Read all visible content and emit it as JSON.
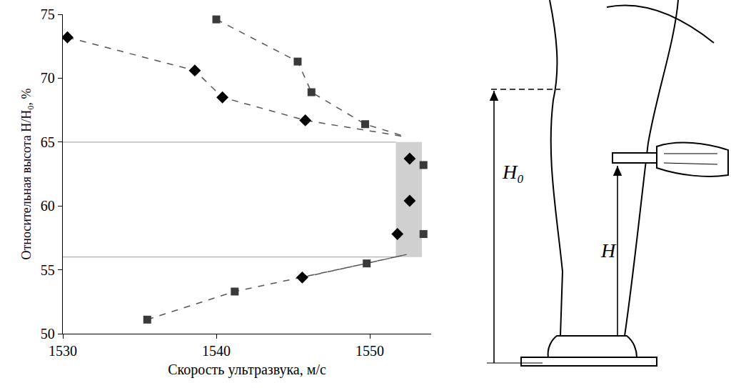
{
  "chart_data": {
    "type": "scatter",
    "xlabel": "Скорость ультразвука, м/с",
    "ylabel": "Относительная высота H/H₀, %",
    "xlim": [
      1530,
      1554
    ],
    "xticks": [
      1530,
      1540,
      1550
    ],
    "ylim": [
      50,
      75
    ],
    "yticks": [
      50,
      55,
      60,
      65,
      70,
      75
    ],
    "grid": false,
    "hlines": [
      65,
      56
    ],
    "band": {
      "x": [
        1551.7,
        1553.4
      ],
      "y": [
        56,
        65
      ]
    },
    "series": [
      {
        "type": "line",
        "line_style": "dash",
        "color": "#555555",
        "x": [
          1530.3,
          1538.6,
          1540.4,
          1545.8,
          1552.4
        ],
        "values": [
          73.2,
          70.6,
          68.5,
          66.7,
          65.4
        ]
      },
      {
        "type": "line",
        "line_style": "dash",
        "color": "#555555",
        "x": [
          1540,
          1545.3,
          1546.2,
          1549.7,
          1552.4
        ],
        "values": [
          74.6,
          71.3,
          68.9,
          66.4,
          65.4
        ]
      },
      {
        "type": "line",
        "line_style": "dash",
        "color": "#555555",
        "x": [
          1535.5,
          1541.2,
          1549.8,
          1552.4
        ],
        "values": [
          51.1,
          53.3,
          55.5,
          56.2
        ]
      },
      {
        "type": "line",
        "line_style": "dash",
        "color": "#555555",
        "x": [
          1545.6,
          1552.4
        ],
        "values": [
          54.4,
          56.2
        ]
      },
      {
        "type": "scatter",
        "marker": "diamond",
        "color": "#000000",
        "x": [
          1530.3,
          1538.6,
          1540.4,
          1545.8,
          1552.6,
          1552.6,
          1551.8,
          1545.6
        ],
        "values": [
          73.2,
          70.6,
          68.5,
          66.7,
          63.7,
          60.4,
          57.8,
          54.4
        ]
      },
      {
        "type": "scatter",
        "marker": "square",
        "color": "#3a3a3a",
        "x": [
          1540,
          1545.3,
          1546.2,
          1549.7,
          1553.5,
          1553.5,
          1549.8,
          1541.2,
          1535.5
        ],
        "values": [
          74.6,
          71.3,
          68.9,
          66.4,
          63.2,
          57.8,
          55.5,
          53.3,
          51.1
        ]
      }
    ]
  },
  "illustration": {
    "labels": [
      "H₀",
      "H"
    ]
  }
}
